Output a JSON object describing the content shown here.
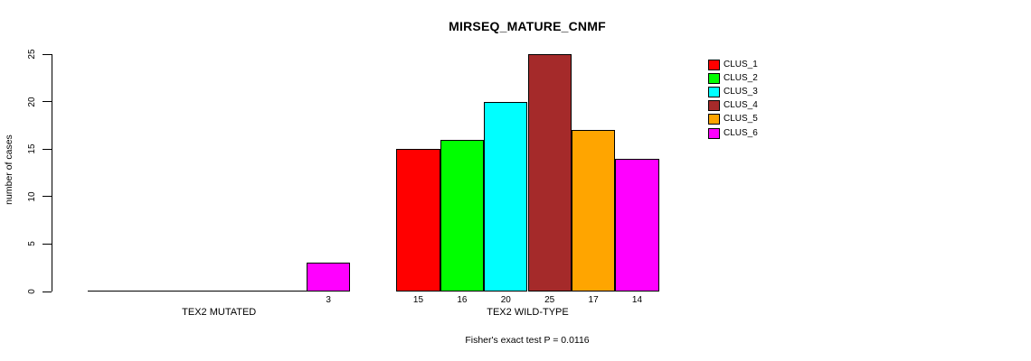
{
  "chart_data": {
    "type": "bar",
    "title": "MIRSEQ_MATURE_CNMF",
    "ylabel": "number of cases",
    "xlabel": "",
    "ylim": [
      0,
      25
    ],
    "yticks": [
      0,
      5,
      10,
      15,
      20,
      25
    ],
    "grid": false,
    "caption": "Fisher's exact test P = 0.0116",
    "legend_position": "right-outside",
    "legend": [
      {
        "name": "CLUS_1",
        "color": "#FF0000"
      },
      {
        "name": "CLUS_2",
        "color": "#00FF00"
      },
      {
        "name": "CLUS_3",
        "color": "#00FFFF"
      },
      {
        "name": "CLUS_4",
        "color": "#A52A2A"
      },
      {
        "name": "CLUS_5",
        "color": "#FFA500"
      },
      {
        "name": "CLUS_6",
        "color": "#FF00FF"
      }
    ],
    "categories": [
      "TEX2 MUTATED",
      "TEX2 WILD-TYPE"
    ],
    "series": [
      {
        "name": "CLUS_1",
        "values": [
          0,
          15
        ]
      },
      {
        "name": "CLUS_2",
        "values": [
          0,
          16
        ]
      },
      {
        "name": "CLUS_3",
        "values": [
          0,
          20
        ]
      },
      {
        "name": "CLUS_4",
        "values": [
          0,
          25
        ]
      },
      {
        "name": "CLUS_5",
        "values": [
          0,
          17
        ]
      },
      {
        "name": "CLUS_6",
        "values": [
          3,
          14
        ]
      }
    ],
    "bar_value_labels": {
      "shown_when": "value > 0"
    }
  }
}
